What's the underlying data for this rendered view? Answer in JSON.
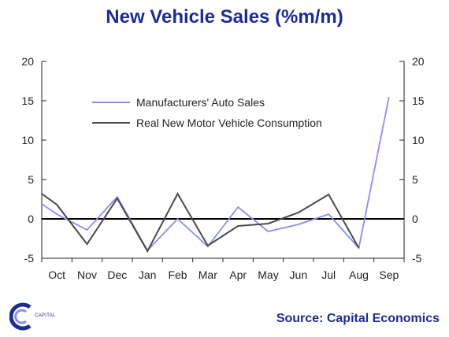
{
  "title": "New Vehicle Sales (%m/m)",
  "source": "Source: Capital Economics",
  "logo": {
    "icon": "capital-economics-logo",
    "text": "CAPITAL"
  },
  "colors": {
    "title": "#1f2c8f",
    "series_1": "#8c8cf0",
    "series_2": "#4a4a4a"
  },
  "chart_data": {
    "type": "line",
    "categories": [
      "Oct",
      "Nov",
      "Dec",
      "Jan",
      "Feb",
      "Mar",
      "Apr",
      "May",
      "Jun",
      "Jul",
      "Aug",
      "Sep"
    ],
    "ylim": [
      -5,
      20
    ],
    "ylim_right": [
      -5,
      20
    ],
    "yticks": [
      -5,
      0,
      5,
      10,
      15,
      20
    ],
    "grid": false,
    "legend_position": "upper-left-inside",
    "series": [
      {
        "name": "Manufacturers' Auto Sales",
        "x": [
          0,
          0.5,
          1.5,
          2.5,
          3.5,
          4.5,
          5.5,
          6.5,
          7.5,
          8.5,
          9.5,
          10.5,
          11.5
        ],
        "values": [
          1.9,
          0.6,
          -1.4,
          2.8,
          -4.0,
          0.0,
          -3.5,
          1.5,
          -1.6,
          -0.7,
          0.6,
          -3.7,
          15.5
        ]
      },
      {
        "name": "Real New Motor Vehicle Consumption",
        "x": [
          0,
          0.5,
          1.5,
          2.5,
          3.5,
          4.5,
          5.5,
          6.5,
          7.5,
          8.5,
          9.5,
          10.5
        ],
        "values": [
          3.2,
          1.8,
          -3.2,
          2.6,
          -4.1,
          3.2,
          -3.4,
          -0.9,
          -0.6,
          0.8,
          3.1,
          -3.7
        ]
      }
    ]
  }
}
